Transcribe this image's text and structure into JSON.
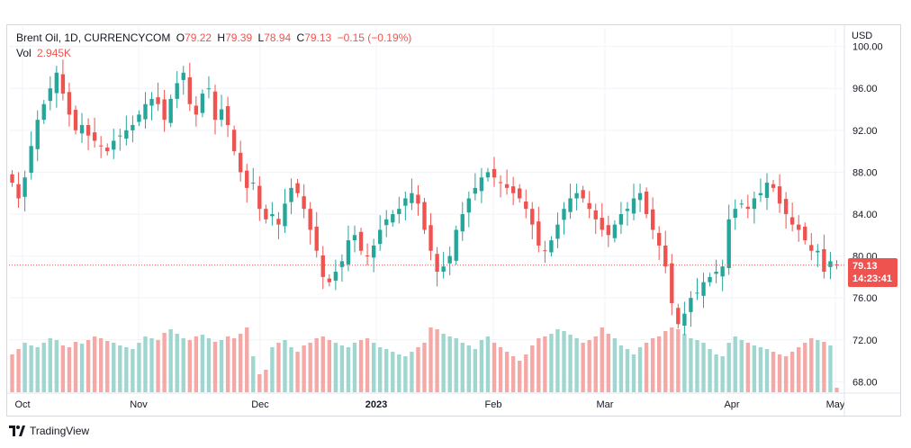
{
  "legend": {
    "symbol": "Brent Oil, 1D, CURRENCYCOM",
    "open_label": "O",
    "open": "79.22",
    "high_label": "H",
    "high": "79.39",
    "low_label": "L",
    "low": "78.94",
    "close_label": "C",
    "close": "79.13",
    "change": "−0.15 (−0.19%)",
    "vol_label": "Vol",
    "vol": "2.945K"
  },
  "axis": {
    "currency": "USD"
  },
  "price_tag": {
    "price": "79.13",
    "countdown": "14:23:41"
  },
  "footer": {
    "brand": "TradingView"
  },
  "colors": {
    "up": "#26a69a",
    "down": "#ef5350",
    "vol_up": "#9fd6d0",
    "vol_down": "#f5a9a6",
    "grid": "#f0f3fa"
  },
  "chart_data": {
    "type": "candlestick",
    "title": "Brent Oil, 1D, CURRENCYCOM",
    "ylabel": "USD",
    "ylim": [
      67,
      101
    ],
    "y_ticks": [
      "100.00",
      "96.00",
      "92.00",
      "88.00",
      "84.00",
      "80.00",
      "76.00",
      "72.00",
      "68.00"
    ],
    "x_ticks": [
      "Oct",
      "Nov",
      "Dec",
      "2023",
      "Feb",
      "Mar",
      "Apr",
      "May"
    ],
    "last_price": 79.13,
    "series_close": [
      87.0,
      85.5,
      87.5,
      90.5,
      93.0,
      94.5,
      96.0,
      97.5,
      95.5,
      93.5,
      92.0,
      92.5,
      91.5,
      91.0,
      90.5,
      90.0,
      91.0,
      91.5,
      92.0,
      92.5,
      93.5,
      94.5,
      95.0,
      94.5,
      93.0,
      95.0,
      96.5,
      97.5,
      94.5,
      93.5,
      95.5,
      96.0,
      93.0,
      94.0,
      92.5,
      90.0,
      88.0,
      86.5,
      87.0,
      84.5,
      83.5,
      84.0,
      83.0,
      85.0,
      86.5,
      86.0,
      84.5,
      82.5,
      80.5,
      78.0,
      77.5,
      78.5,
      79.5,
      81.5,
      82.0,
      80.5,
      80.0,
      81.0,
      82.5,
      83.5,
      84.0,
      84.5,
      85.5,
      86.0,
      85.0,
      82.5,
      80.5,
      78.5,
      79.0,
      80.0,
      82.5,
      84.0,
      85.5,
      86.5,
      87.5,
      88.0,
      87.5,
      87.0,
      86.5,
      86.0,
      85.5,
      84.5,
      83.0,
      81.0,
      80.5,
      81.5,
      83.0,
      84.5,
      85.5,
      86.0,
      85.5,
      84.5,
      83.5,
      82.5,
      82.0,
      83.0,
      84.0,
      84.5,
      85.5,
      86.0,
      84.0,
      82.5,
      81.0,
      79.0,
      75.5,
      73.5,
      74.5,
      76.0,
      76.5,
      77.5,
      78.0,
      78.5,
      79.0,
      83.5,
      84.5,
      85.0,
      84.5,
      85.5,
      86.0,
      87.0,
      86.5,
      85.0,
      84.0,
      83.0,
      82.5,
      81.5,
      80.5,
      80.5,
      78.5,
      79.5,
      79.13
    ],
    "volume_relative": [
      0.42,
      0.48,
      0.55,
      0.52,
      0.5,
      0.55,
      0.6,
      0.58,
      0.52,
      0.5,
      0.56,
      0.54,
      0.58,
      0.62,
      0.6,
      0.57,
      0.55,
      0.52,
      0.5,
      0.48,
      0.55,
      0.62,
      0.6,
      0.58,
      0.66,
      0.7,
      0.65,
      0.6,
      0.58,
      0.62,
      0.64,
      0.6,
      0.56,
      0.58,
      0.62,
      0.6,
      0.65,
      0.72,
      0.4,
      0.2,
      0.25,
      0.5,
      0.55,
      0.58,
      0.5,
      0.45,
      0.52,
      0.55,
      0.6,
      0.62,
      0.58,
      0.55,
      0.52,
      0.5,
      0.55,
      0.58,
      0.6,
      0.55,
      0.5,
      0.48,
      0.45,
      0.42,
      0.4,
      0.45,
      0.5,
      0.55,
      0.72,
      0.7,
      0.65,
      0.62,
      0.6,
      0.55,
      0.52,
      0.48,
      0.58,
      0.62,
      0.55,
      0.5,
      0.45,
      0.4,
      0.35,
      0.42,
      0.52,
      0.6,
      0.62,
      0.65,
      0.7,
      0.68,
      0.64,
      0.6,
      0.55,
      0.58,
      0.62,
      0.72,
      0.65,
      0.6,
      0.52,
      0.48,
      0.42,
      0.5,
      0.55,
      0.6,
      0.62,
      0.68,
      0.72,
      0.7,
      0.65,
      0.6,
      0.58,
      0.55,
      0.48,
      0.42,
      0.4,
      0.55,
      0.62,
      0.58,
      0.55,
      0.52,
      0.5,
      0.48,
      0.45,
      0.42,
      0.4,
      0.45,
      0.5,
      0.55,
      0.6,
      0.58,
      0.56,
      0.52,
      0.05
    ]
  }
}
